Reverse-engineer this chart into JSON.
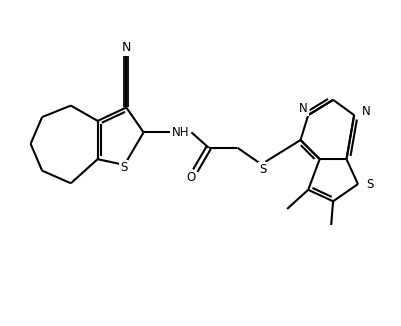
{
  "background_color": "#ffffff",
  "line_color": "#000000",
  "line_width": 1.5,
  "figsize": [
    4.02,
    3.26
  ],
  "dpi": 100,
  "xlim": [
    0,
    10.5
  ],
  "ylim": [
    0,
    8.5
  ]
}
